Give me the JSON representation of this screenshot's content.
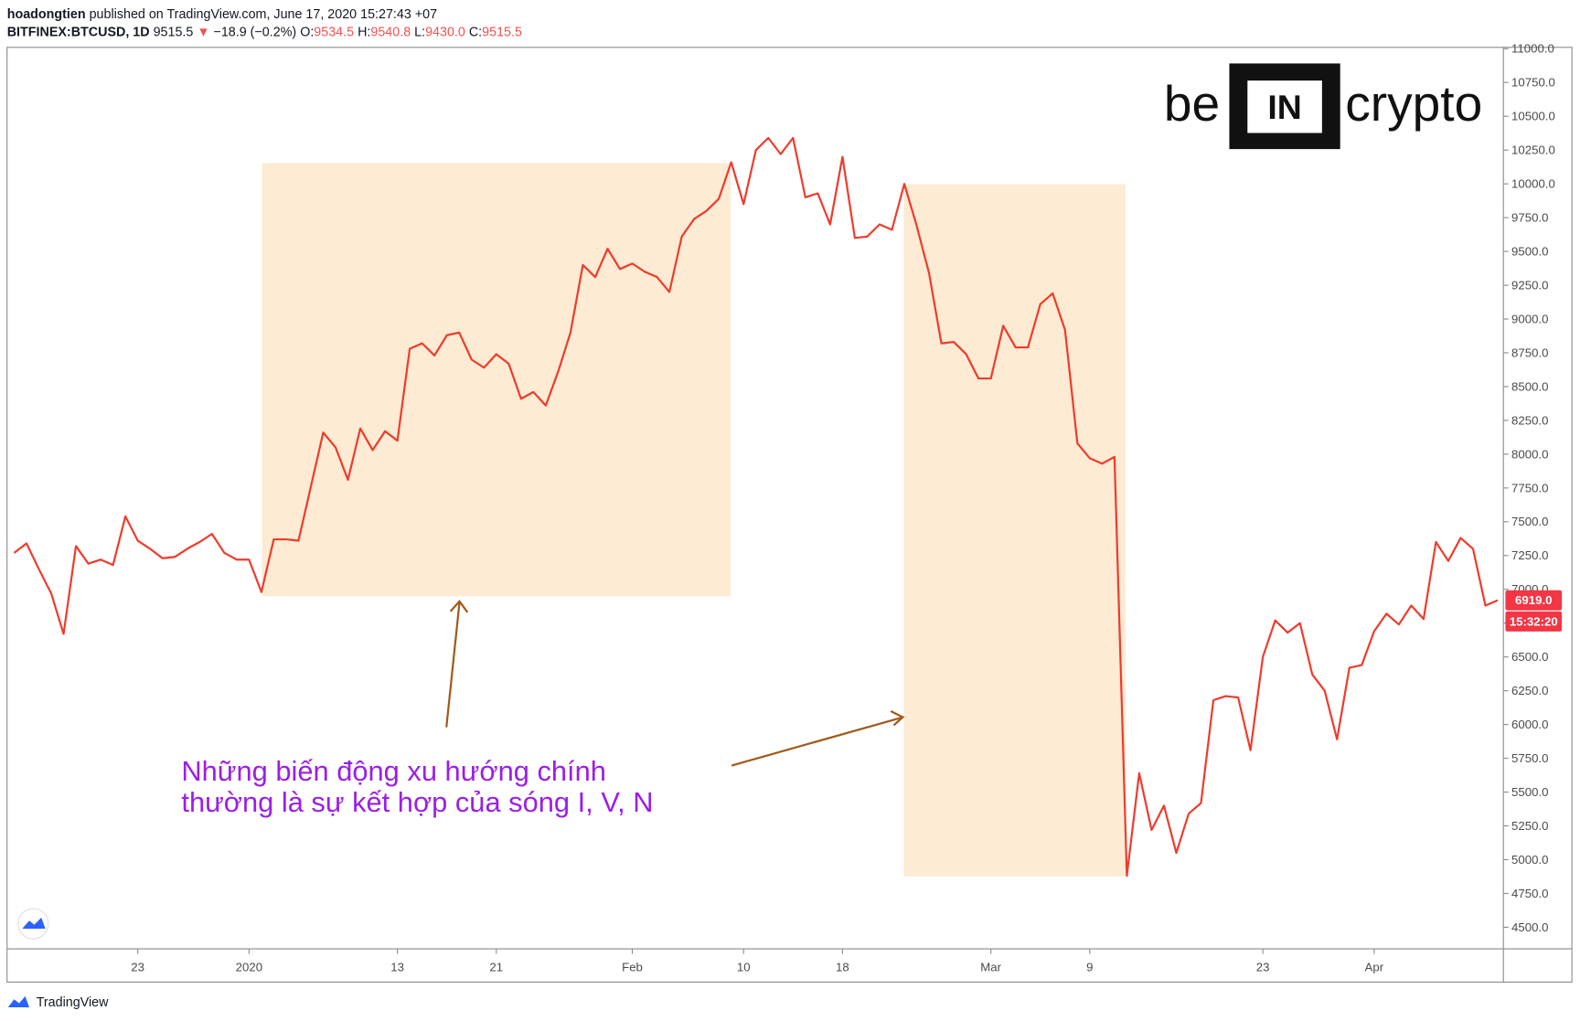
{
  "header": {
    "author": "hoadongtien",
    "published": "published on TradingView.com, June 17, 2020 15:27:43 +07",
    "symbol": "BITFINEX:BTCUSD, 1D",
    "last": "9515.5",
    "change_icon": "▼",
    "change": "−18.9 (−0.2%)",
    "ohlc": [
      [
        "O:",
        "9534.5"
      ],
      [
        "H:",
        "9540.8"
      ],
      [
        "L:",
        "9430.0"
      ],
      [
        "C:",
        "9515.5"
      ]
    ]
  },
  "logo": {
    "left": "be",
    "mid": "IN",
    "right": "crypto"
  },
  "chart_data": {
    "type": "line",
    "color": "#ef3b2c",
    "grid": false,
    "categories": [
      null,
      null,
      null,
      null,
      null,
      null,
      null,
      null,
      null,
      null,
      "23",
      null,
      null,
      null,
      null,
      null,
      null,
      null,
      null,
      "2020",
      null,
      null,
      null,
      null,
      null,
      null,
      null,
      null,
      null,
      null,
      null,
      "13",
      null,
      null,
      null,
      null,
      null,
      null,
      null,
      "21",
      null,
      null,
      null,
      null,
      null,
      null,
      null,
      null,
      null,
      null,
      "Feb",
      null,
      null,
      null,
      null,
      null,
      null,
      null,
      null,
      "10",
      null,
      null,
      null,
      null,
      null,
      null,
      null,
      "18",
      null,
      null,
      null,
      null,
      null,
      null,
      null,
      null,
      null,
      null,
      null,
      "Mar",
      null,
      null,
      null,
      null,
      null,
      null,
      null,
      "9",
      null,
      null,
      null,
      null,
      null,
      null,
      null,
      null,
      null,
      null,
      null,
      null,
      null,
      "23",
      null,
      null,
      null,
      null,
      null,
      null,
      null,
      null,
      "Apr",
      null,
      null,
      null,
      null,
      null,
      null,
      null,
      null,
      null,
      null
    ],
    "values": [
      7270,
      7340,
      7150,
      6970,
      6670,
      7320,
      7190,
      7220,
      7180,
      7540,
      7360,
      7300,
      7230,
      7240,
      7300,
      7350,
      7410,
      7270,
      7220,
      7220,
      6980,
      7370,
      7370,
      7360,
      7760,
      8160,
      8050,
      7810,
      8190,
      8030,
      8170,
      8100,
      8780,
      8820,
      8730,
      8880,
      8900,
      8700,
      8640,
      8740,
      8670,
      8410,
      8460,
      8360,
      8610,
      8900,
      9400,
      9310,
      9520,
      9370,
      9410,
      9350,
      9310,
      9200,
      9610,
      9740,
      9800,
      9890,
      10160,
      9850,
      10250,
      10340,
      10220,
      10340,
      9900,
      9930,
      9700,
      10200,
      9600,
      9610,
      9700,
      9660,
      10000,
      9690,
      9340,
      8820,
      8830,
      8740,
      8560,
      8560,
      8950,
      8790,
      8790,
      9110,
      9190,
      8920,
      8080,
      7970,
      7930,
      7980,
      4880,
      5640,
      5220,
      5400,
      5050,
      5340,
      5420,
      6180,
      6210,
      6200,
      5810,
      6500,
      6770,
      6680,
      6750,
      6370,
      6250,
      5890,
      6420,
      6440,
      6690,
      6820,
      6740,
      6880,
      6780,
      7350,
      7210,
      7380,
      7300,
      6880,
      6919
    ],
    "ylim": [
      4340,
      11010
    ],
    "yticks": [
      {
        "value": 4500,
        "label": "4500.0"
      },
      {
        "value": 4750,
        "label": "4750.0"
      },
      {
        "value": 5000,
        "label": "5000.0"
      },
      {
        "value": 5250,
        "label": "5250.0"
      },
      {
        "value": 5500,
        "label": "5500.0"
      },
      {
        "value": 5750,
        "label": "5750.0"
      },
      {
        "value": 6000,
        "label": "6000.0"
      },
      {
        "value": 6250,
        "label": "6250.0"
      },
      {
        "value": 6500,
        "label": "6500.0"
      },
      {
        "value": 6750,
        "label": "6750.0"
      },
      {
        "value": 7000,
        "label": "7000.0"
      },
      {
        "value": 7250,
        "label": "7250.0"
      },
      {
        "value": 7500,
        "label": "7500.0"
      },
      {
        "value": 7750,
        "label": "7750.0"
      },
      {
        "value": 8000,
        "label": "8000.0"
      },
      {
        "value": 8250,
        "label": "8250.0"
      },
      {
        "value": 8500,
        "label": "8500.0"
      },
      {
        "value": 8750,
        "label": "8750.0"
      },
      {
        "value": 9000,
        "label": "9000.0"
      },
      {
        "value": 9250,
        "label": "9250.0"
      },
      {
        "value": 9500,
        "label": "9500.0"
      },
      {
        "value": 9750,
        "label": "9750.0"
      },
      {
        "value": 10000,
        "label": "10000.0"
      },
      {
        "value": 10250,
        "label": "10250.0"
      },
      {
        "value": 10500,
        "label": "10500.0"
      },
      {
        "value": 10750,
        "label": "10750.0"
      },
      {
        "value": 11000,
        "label": "11000.0"
      }
    ],
    "price_tag": {
      "value": 6919,
      "label": "6919.0"
    },
    "countdown": "15:32:20",
    "annotation": [
      "Những biến động xu hướng chính",
      "thường là sự kết hợp của sóng I, V, N"
    ]
  },
  "footer": "TradingView"
}
